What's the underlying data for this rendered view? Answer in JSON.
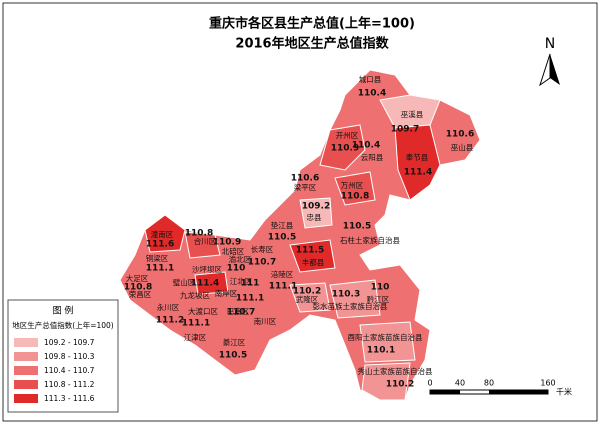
{
  "title": "重庆市各区县生产总值(上年=100)",
  "subtitle": "2016年地区生产总值指数",
  "north": "N",
  "region_names": [
    "城口县",
    "巫溪县",
    "巫山县",
    "开州区",
    "云阳县",
    "奉节县",
    "梁平区",
    "万州区",
    "忠县",
    "垫江县",
    "石柱土家族自治县",
    "丰都县",
    "潼南区",
    "合川区",
    "北碚区",
    "铜梁区",
    "渝北区",
    "长寿区",
    "沙坪坝区",
    "大足区",
    "江北区",
    "璧山区",
    "荣昌区",
    "九龙坡区",
    "南岸区",
    "涪陵区",
    "武隆区",
    "黔江区",
    "彭水苗族土家族自治县",
    "永川区",
    "大渡口区",
    "巴南区",
    "南川区",
    "江津区",
    "綦江区",
    "酉阳土家族苗族自治县",
    "秀山土家族苗族自治县"
  ],
  "value_labels": [
    110.4,
    109.7,
    110.6,
    110.9,
    110.4,
    111.4,
    110.6,
    110.8,
    109.2,
    110.5,
    110.5,
    111.5,
    111.6,
    110.8,
    110.9,
    111.1,
    110,
    110.7,
    111.4,
    110.8,
    111,
    111.1,
    111.1,
    110.2,
    110,
    110.3,
    111.2,
    111.1,
    110.7,
    110.5,
    110.1,
    110.2
  ],
  "legend": {
    "title": "图 例",
    "subtitle": "地区生产总值指数(上年=100)",
    "classes": [
      {
        "label": "109.2 - 109.7",
        "color": "#f7b8b8"
      },
      {
        "label": "109.8 - 110.3",
        "color": "#f39494"
      },
      {
        "label": "110.4 - 110.7",
        "color": "#ee7070"
      },
      {
        "label": "110.8 - 111.2",
        "color": "#e84f4f"
      },
      {
        "label": "111.3 - 111.6",
        "color": "#e02a2a"
      }
    ]
  },
  "scale": {
    "ticks": [
      "0",
      "40",
      "80",
      "160"
    ],
    "unit": "千米"
  }
}
